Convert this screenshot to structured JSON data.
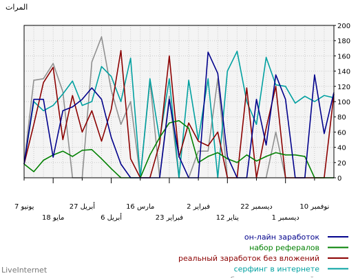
{
  "brand": "LiveInternet",
  "chart_data": {
    "type": "line",
    "ylabel": "المرات",
    "ylim": [
      0,
      200
    ],
    "yticks": [
      0,
      20,
      40,
      60,
      80,
      100,
      120,
      140,
      160,
      180,
      200
    ],
    "grid": true,
    "legend": "bottom-right",
    "x_tick_labels": [
      {
        "label": "7 يونيو",
        "index": 0,
        "row": 1
      },
      {
        "label": "18 مايو",
        "index": 3,
        "row": 2
      },
      {
        "label": "27 أبريل",
        "index": 6,
        "row": 1
      },
      {
        "label": "6 أبريل",
        "index": 9,
        "row": 2
      },
      {
        "label": "16 مارس",
        "index": 12,
        "row": 1
      },
      {
        "label": "23 فبراير",
        "index": 15,
        "row": 2
      },
      {
        "label": "2 فبراير",
        "index": 18,
        "row": 1
      },
      {
        "label": "12 يناير",
        "index": 21,
        "row": 2
      },
      {
        "label": "22 ديسمبر",
        "index": 24,
        "row": 1
      },
      {
        "label": "1 ديسمبر",
        "index": 27,
        "row": 2
      },
      {
        "label": "10 نوفمبر",
        "index": 30,
        "row": 1
      }
    ],
    "series": [
      {
        "name": "он-лайн заработок",
        "color": "#00008b",
        "values": [
          18,
          103,
          103,
          27,
          88,
          93,
          103,
          118,
          103,
          53,
          18,
          0,
          0,
          0,
          0,
          103,
          28,
          0,
          0,
          165,
          137,
          28,
          0,
          0,
          103,
          43,
          135,
          103,
          0,
          0,
          135,
          58,
          112
        ]
      },
      {
        "name": "набор рефералов",
        "color": "#008000",
        "values": [
          18,
          8,
          23,
          30,
          35,
          28,
          36,
          37,
          25,
          12,
          0,
          0,
          0,
          30,
          53,
          72,
          75,
          65,
          20,
          28,
          33,
          25,
          20,
          30,
          22,
          28,
          33,
          30,
          30,
          28,
          0,
          0,
          0
        ]
      },
      {
        "name": "реальный заработок без вложений",
        "color": "#8b0000",
        "values": [
          18,
          70,
          125,
          145,
          50,
          108,
          60,
          88,
          48,
          90,
          167,
          25,
          0,
          0,
          45,
          160,
          27,
          72,
          48,
          42,
          60,
          0,
          0,
          118,
          0,
          65,
          120,
          0,
          0,
          0,
          0,
          0,
          110
        ]
      },
      {
        "name": "серфинг в интернете",
        "color": "#00a0a0",
        "values": [
          18,
          100,
          88,
          95,
          110,
          127,
          95,
          100,
          146,
          133,
          100,
          157,
          0,
          130,
          50,
          130,
          0,
          128,
          50,
          130,
          0,
          140,
          166,
          100,
          70,
          158,
          122,
          120,
          98,
          107,
          100,
          108,
          105
        ]
      },
      {
        "name": "заработать деньги онлайн",
        "color": "#909090",
        "values": [
          18,
          128,
          130,
          150,
          113,
          0,
          0,
          152,
          185,
          115,
          70,
          100,
          0,
          127,
          0,
          107,
          0,
          0,
          35,
          35,
          130,
          0,
          0,
          0,
          0,
          0,
          60,
          0,
          0,
          0,
          0,
          0,
          0
        ]
      }
    ]
  }
}
